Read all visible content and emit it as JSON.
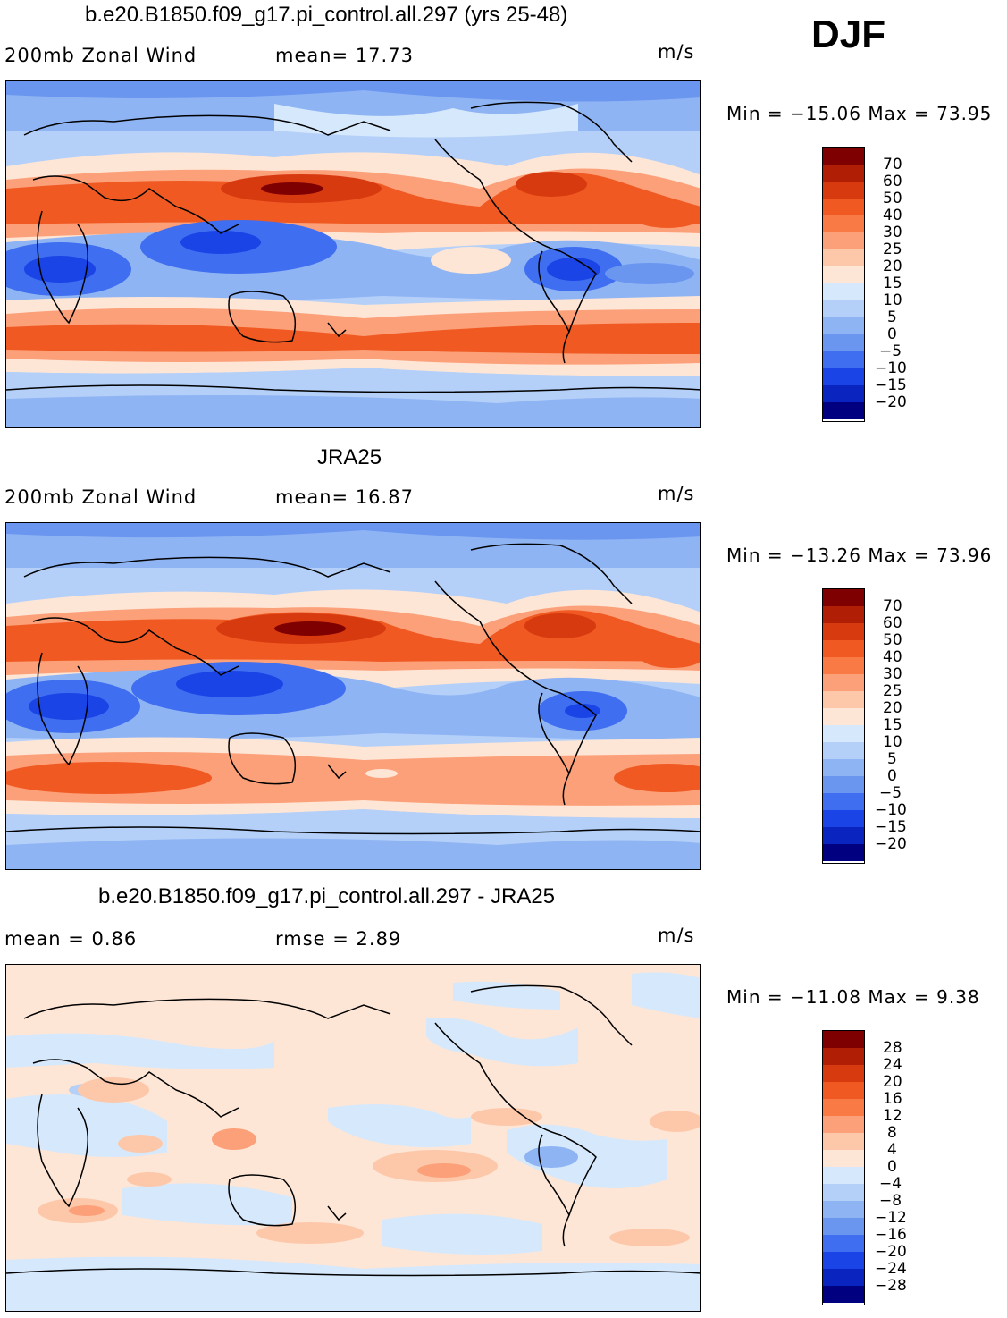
{
  "season": "DJF",
  "panels": [
    {
      "title": "b.e20.B1850.f09_g17.pi_control.all.297 (yrs 25-48)",
      "left_label": "200mb Zonal Wind",
      "center_label": "mean=   17.73",
      "units": "m/s",
      "minmax": "Min = −15.06 Max =   73.95",
      "colorbar_labels": [
        "70",
        "60",
        "50",
        "40",
        "30",
        "25",
        "20",
        "15",
        "10",
        "5",
        "0",
        "−5",
        "−10",
        "−15",
        "−20"
      ],
      "colors": [
        "#7f0000",
        "#b01e05",
        "#d83a10",
        "#f05a22",
        "#fa7a45",
        "#fca07a",
        "#fdc8aa",
        "#fee6d6",
        "#d6e8fb",
        "#b4d0f8",
        "#8fb4f4",
        "#6a96f0",
        "#3f6ef0",
        "#1a44e6",
        "#0a24c0",
        "#000080"
      ]
    },
    {
      "title": "JRA25",
      "left_label": "200mb Zonal Wind",
      "center_label": "mean=   16.87",
      "units": "m/s",
      "minmax": "Min = −13.26 Max =   73.96",
      "colorbar_labels": [
        "70",
        "60",
        "50",
        "40",
        "30",
        "25",
        "20",
        "15",
        "10",
        "5",
        "0",
        "−5",
        "−10",
        "−15",
        "−20"
      ],
      "colors": [
        "#7f0000",
        "#b01e05",
        "#d83a10",
        "#f05a22",
        "#fa7a45",
        "#fca07a",
        "#fdc8aa",
        "#fee6d6",
        "#d6e8fb",
        "#b4d0f8",
        "#8fb4f4",
        "#6a96f0",
        "#3f6ef0",
        "#1a44e6",
        "#0a24c0",
        "#000080"
      ]
    },
    {
      "title": "b.e20.B1850.f09_g17.pi_control.all.297 - JRA25",
      "left_label": "mean =    0.86",
      "center_label": "rmse =    2.89",
      "units": "m/s",
      "minmax": "Min = −11.08 Max =    9.38",
      "colorbar_labels": [
        "28",
        "24",
        "20",
        "16",
        "12",
        "8",
        "4",
        "0",
        "−4",
        "−8",
        "−12",
        "−16",
        "−20",
        "−24",
        "−28"
      ],
      "colors": [
        "#7f0000",
        "#b01e05",
        "#d83a10",
        "#f05a22",
        "#fa7a45",
        "#fca07a",
        "#fdc8aa",
        "#fee6d6",
        "#d6e8fb",
        "#b4d0f8",
        "#8fb4f4",
        "#6a96f0",
        "#3f6ef0",
        "#1a44e6",
        "#0a24c0",
        "#000080"
      ]
    }
  ]
}
